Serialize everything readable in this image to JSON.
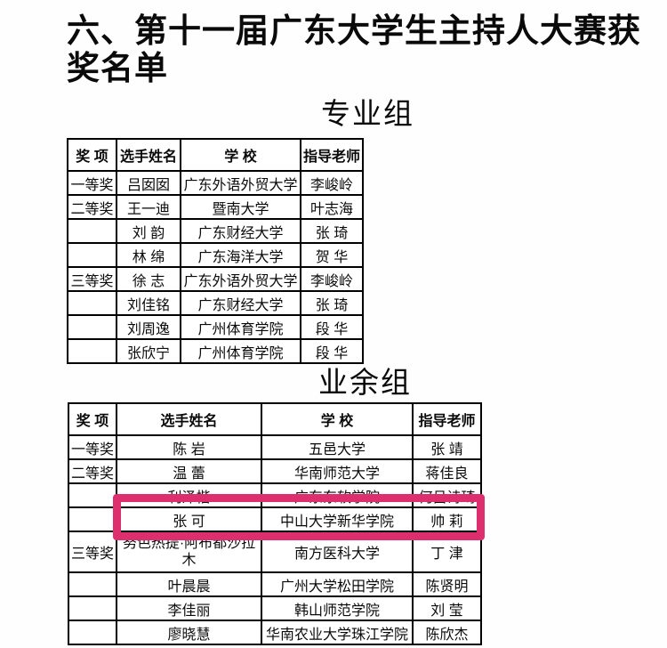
{
  "page": {
    "title": "六、第十一届广东大学生主持人大赛获奖名单"
  },
  "sections": [
    {
      "group_title": "专业组",
      "table": {
        "headers": [
          "奖 项",
          "选手姓名",
          "学 校",
          "指导老师"
        ],
        "rows": [
          [
            "一等奖",
            "吕囡囡",
            "广东外语外贸大学",
            "李峻岭"
          ],
          [
            "二等奖",
            "王一迪",
            "暨南大学",
            "叶志海"
          ],
          [
            "",
            "刘 韵",
            "广东财经大学",
            "张 琦"
          ],
          [
            "",
            "林 绵",
            "广东海洋大学",
            "贺 华"
          ],
          [
            "三等奖",
            "徐 志",
            "广东外语外贸大学",
            "李峻岭"
          ],
          [
            "",
            "刘佳铭",
            "广东财经大学",
            "张 琦"
          ],
          [
            "",
            "刘周逸",
            "广州体育学院",
            "段 华"
          ],
          [
            "",
            "张欣宁",
            "广州体育学院",
            "段 华"
          ]
        ]
      }
    },
    {
      "group_title": "业余组",
      "table": {
        "headers": [
          "奖 项",
          "选手姓名",
          "学 校",
          "指导老师"
        ],
        "rows": [
          [
            "一等奖",
            "陈 岩",
            "五邑大学",
            "张 靖"
          ],
          [
            "二等奖",
            "温 蕾",
            "华南师范大学",
            "蒋佳良"
          ],
          [
            "",
            "利泽楷",
            "广东东软学院",
            "何吕诗琦"
          ],
          [
            "",
            "张 可",
            "中山大学新华学院",
            "帅 莉"
          ],
          [
            "三等奖",
            "努色热提·阿布都沙拉木",
            "南方医科大学",
            "丁 津"
          ],
          [
            "",
            "叶晨晨",
            "广州大学松田学院",
            "陈贤明"
          ],
          [
            "",
            "李佳丽",
            "韩山师范学院",
            "刘 莹"
          ],
          [
            "",
            "廖晓慧",
            "华南农业大学珠江学院",
            "陈欣杰"
          ]
        ]
      }
    }
  ],
  "highlight": {
    "color": "#dd2e6e"
  }
}
